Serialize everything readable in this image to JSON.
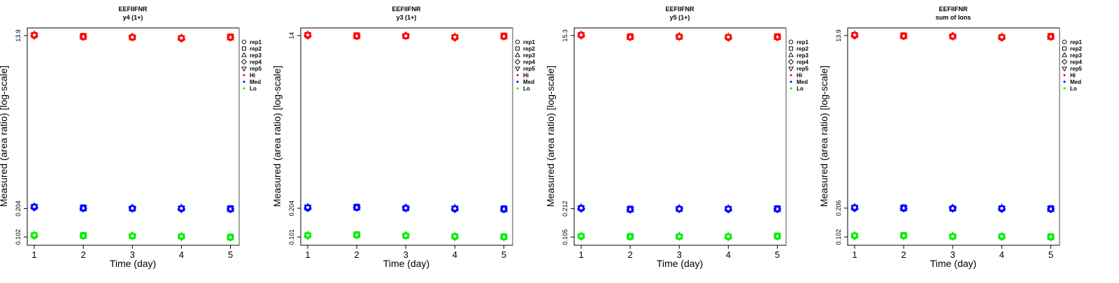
{
  "chart_data": [
    {
      "type": "scatter",
      "title": "EEFIIFNR",
      "subtitle": "y4 (1+)",
      "xlabel": "Time (day)",
      "ylabel": "Measured (area ratio) [log-scale]",
      "x": [
        1,
        2,
        3,
        4,
        5
      ],
      "yticks": [
        "0.102",
        "0.204",
        "13.9"
      ],
      "series": [
        {
          "name": "Hi",
          "color": "#ff0000",
          "values": [
            13.9,
            13.4,
            13.3,
            12.9,
            13.2
          ]
        },
        {
          "name": "Med",
          "color": "#0000ff",
          "values": [
            0.21,
            0.204,
            0.204,
            0.202,
            0.2
          ]
        },
        {
          "name": "Lo",
          "color": "#00ee00",
          "values": [
            0.105,
            0.104,
            0.104,
            0.102,
            0.1
          ]
        }
      ]
    },
    {
      "type": "scatter",
      "title": "EEFIIFNR",
      "subtitle": "y3 (1+)",
      "xlabel": "Time (day)",
      "ylabel": "Measured (area ratio) [log-scale]",
      "x": [
        1,
        2,
        3,
        4,
        5
      ],
      "yticks": [
        "0.101",
        "0.204",
        "14"
      ],
      "series": [
        {
          "name": "Hi",
          "color": "#ff0000",
          "values": [
            14.0,
            13.7,
            13.8,
            13.3,
            13.6
          ]
        },
        {
          "name": "Med",
          "color": "#0000ff",
          "values": [
            0.205,
            0.206,
            0.204,
            0.2,
            0.198
          ]
        },
        {
          "name": "Lo",
          "color": "#00ee00",
          "values": [
            0.104,
            0.105,
            0.104,
            0.101,
            0.1
          ]
        }
      ]
    },
    {
      "type": "scatter",
      "title": "EEFIIFNR",
      "subtitle": "y5 (1+)",
      "xlabel": "Time (day)",
      "ylabel": "Measured (area ratio) [log-scale]",
      "x": [
        1,
        2,
        3,
        4,
        5
      ],
      "yticks": [
        "0.105",
        "0.212",
        "15.3"
      ],
      "series": [
        {
          "name": "Hi",
          "color": "#ff0000",
          "values": [
            15.3,
            14.6,
            14.8,
            14.5,
            14.6
          ]
        },
        {
          "name": "Med",
          "color": "#0000ff",
          "values": [
            0.212,
            0.206,
            0.21,
            0.208,
            0.208
          ]
        },
        {
          "name": "Lo",
          "color": "#00ee00",
          "values": [
            0.106,
            0.105,
            0.106,
            0.105,
            0.106
          ]
        }
      ]
    },
    {
      "type": "scatter",
      "title": "EEFIIFNR",
      "subtitle": "sum of Ions",
      "xlabel": "Time (day)",
      "ylabel": "Measured (area ratio) [log-scale]",
      "x": [
        1,
        2,
        3,
        4,
        5
      ],
      "yticks": [
        "0.102",
        "0.206",
        "13.9"
      ],
      "series": [
        {
          "name": "Hi",
          "color": "#ff0000",
          "values": [
            13.9,
            13.6,
            13.6,
            13.2,
            13.4
          ]
        },
        {
          "name": "Med",
          "color": "#0000ff",
          "values": [
            0.206,
            0.204,
            0.204,
            0.202,
            0.2
          ]
        },
        {
          "name": "Lo",
          "color": "#00ee00",
          "values": [
            0.104,
            0.104,
            0.103,
            0.102,
            0.101
          ]
        }
      ]
    }
  ],
  "legend": {
    "placement": "right",
    "shapes": [
      {
        "label": "rep1",
        "symbol": "circle"
      },
      {
        "label": "rep2",
        "symbol": "square"
      },
      {
        "label": "rep3",
        "symbol": "triangle-up"
      },
      {
        "label": "rep4",
        "symbol": "diamond"
      },
      {
        "label": "rep5",
        "symbol": "triangle-down"
      }
    ],
    "colors": [
      {
        "label": "Hi",
        "color": "#ff0000"
      },
      {
        "label": "Med",
        "color": "#0000ff"
      },
      {
        "label": "Lo",
        "color": "#00ee00"
      }
    ]
  }
}
